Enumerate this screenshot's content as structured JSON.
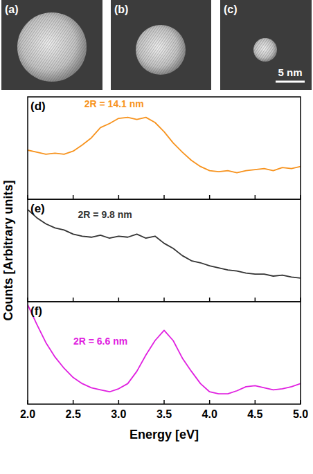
{
  "images": [
    {
      "label": "(a)"
    },
    {
      "label": "(b)"
    },
    {
      "label": "(c)",
      "scale_bar": "5 nm"
    }
  ],
  "chart_data": [
    {
      "type": "line",
      "title": "(d)",
      "annotation": "2R = 14.1 nm",
      "x": [
        2.0,
        2.1,
        2.2,
        2.3,
        2.4,
        2.5,
        2.6,
        2.7,
        2.8,
        2.9,
        3.0,
        3.1,
        3.2,
        3.3,
        3.4,
        3.5,
        3.6,
        3.7,
        3.8,
        3.9,
        4.0,
        4.1,
        4.2,
        4.3,
        4.4,
        4.5,
        4.6,
        4.7,
        4.8,
        4.9,
        5.0
      ],
      "series": [
        {
          "color": "#f7931e",
          "values": [
            0.48,
            0.46,
            0.44,
            0.45,
            0.44,
            0.47,
            0.53,
            0.6,
            0.7,
            0.74,
            0.79,
            0.8,
            0.78,
            0.8,
            0.75,
            0.66,
            0.55,
            0.46,
            0.38,
            0.32,
            0.28,
            0.27,
            0.28,
            0.26,
            0.28,
            0.29,
            0.3,
            0.28,
            0.31,
            0.3,
            0.32
          ]
        }
      ],
      "xlim": [
        2.0,
        5.0
      ],
      "xticks": [
        {
          "value": 2.0,
          "label": "2.0"
        },
        {
          "value": 2.5,
          "label": "2.5"
        },
        {
          "value": 3.0,
          "label": "3.0"
        },
        {
          "value": 3.5,
          "label": "3.5"
        },
        {
          "value": 4.0,
          "label": "4.0"
        },
        {
          "value": 4.5,
          "label": "4.5"
        },
        {
          "value": 5.0,
          "label": "5.0"
        }
      ],
      "ylim": [
        0,
        1
      ],
      "yticks": [],
      "tick_labels": false
    },
    {
      "type": "line",
      "title": "(e)",
      "annotation": "2R = 9.8 nm",
      "ylabel": "Counts [Arbitrary units]",
      "x": [
        2.0,
        2.1,
        2.2,
        2.3,
        2.4,
        2.5,
        2.6,
        2.7,
        2.8,
        2.9,
        3.0,
        3.1,
        3.2,
        3.3,
        3.4,
        3.5,
        3.6,
        3.7,
        3.8,
        3.9,
        4.0,
        4.1,
        4.2,
        4.3,
        4.4,
        4.5,
        4.6,
        4.7,
        4.8,
        4.9,
        5.0
      ],
      "series": [
        {
          "color": "#333333",
          "values": [
            0.9,
            0.82,
            0.76,
            0.72,
            0.7,
            0.66,
            0.64,
            0.63,
            0.65,
            0.62,
            0.64,
            0.63,
            0.66,
            0.62,
            0.64,
            0.57,
            0.52,
            0.45,
            0.4,
            0.38,
            0.35,
            0.33,
            0.31,
            0.3,
            0.28,
            0.27,
            0.27,
            0.25,
            0.26,
            0.24,
            0.23
          ]
        }
      ],
      "xlim": [
        2.0,
        5.0
      ],
      "xticks": [
        {
          "value": 2.0,
          "label": "2.0"
        },
        {
          "value": 2.5,
          "label": "2.5"
        },
        {
          "value": 3.0,
          "label": "3.0"
        },
        {
          "value": 3.5,
          "label": "3.5"
        },
        {
          "value": 4.0,
          "label": "4.0"
        },
        {
          "value": 4.5,
          "label": "4.5"
        },
        {
          "value": 5.0,
          "label": "5.0"
        }
      ],
      "ylim": [
        0,
        1
      ],
      "yticks": [],
      "tick_labels": false
    },
    {
      "type": "line",
      "title": "(f)",
      "annotation": "2R = 6.6 nm",
      "xlabel": "Energy [eV]",
      "x": [
        2.0,
        2.1,
        2.2,
        2.3,
        2.4,
        2.5,
        2.6,
        2.7,
        2.8,
        2.9,
        3.0,
        3.1,
        3.2,
        3.3,
        3.4,
        3.5,
        3.6,
        3.7,
        3.8,
        3.9,
        4.0,
        4.1,
        4.2,
        4.3,
        4.4,
        4.5,
        4.6,
        4.7,
        4.8,
        4.9,
        5.0
      ],
      "series": [
        {
          "color": "#e020e0",
          "values": [
            0.97,
            0.78,
            0.6,
            0.46,
            0.35,
            0.26,
            0.2,
            0.16,
            0.14,
            0.12,
            0.15,
            0.2,
            0.32,
            0.48,
            0.62,
            0.72,
            0.62,
            0.45,
            0.32,
            0.2,
            0.12,
            0.1,
            0.1,
            0.13,
            0.17,
            0.18,
            0.16,
            0.14,
            0.15,
            0.17,
            0.2
          ]
        }
      ],
      "xlim": [
        2.0,
        5.0
      ],
      "xticks": [
        {
          "value": 2.0,
          "label": "2.0"
        },
        {
          "value": 2.5,
          "label": "2.5"
        },
        {
          "value": 3.0,
          "label": "3.0"
        },
        {
          "value": 3.5,
          "label": "3.5"
        },
        {
          "value": 4.0,
          "label": "4.0"
        },
        {
          "value": 4.5,
          "label": "4.5"
        },
        {
          "value": 5.0,
          "label": "5.0"
        }
      ],
      "ylim": [
        0,
        1
      ],
      "yticks": [],
      "tick_labels": "x"
    }
  ]
}
